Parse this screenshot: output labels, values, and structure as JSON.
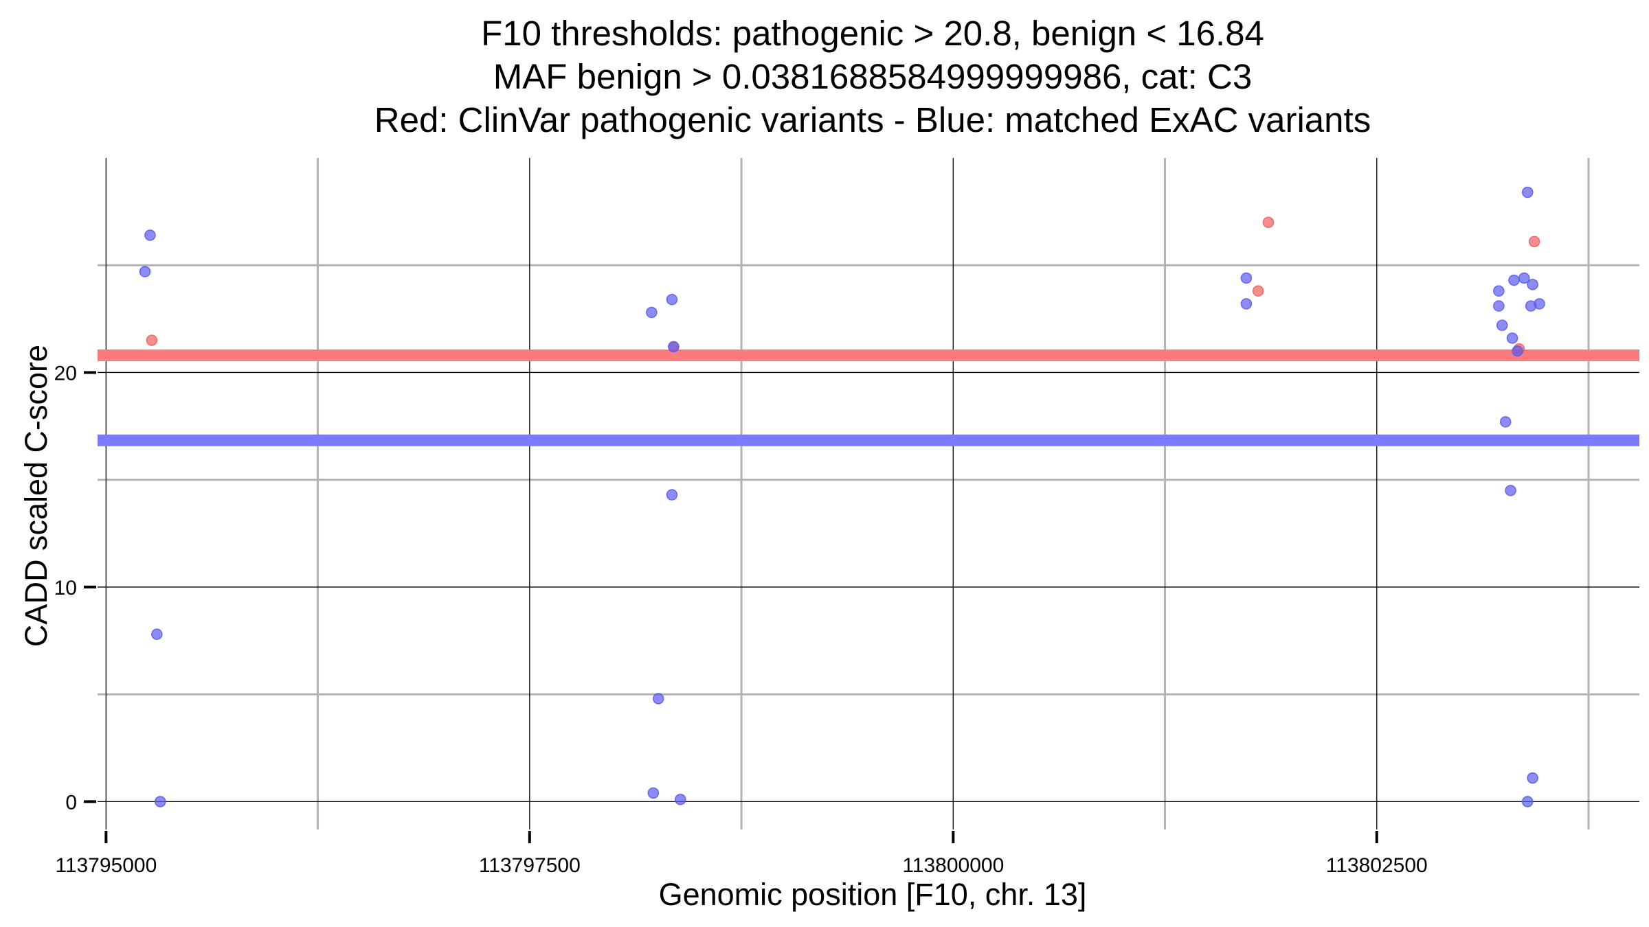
{
  "chart_data": {
    "type": "scatter",
    "title_lines": [
      "F10 thresholds: pathogenic > 20.8, benign < 16.84",
      "MAF benign > 0.0381688584999999986, cat: C3",
      "Red: ClinVar pathogenic variants - Blue: matched ExAC variants"
    ],
    "xlabel": "Genomic position [F10, chr. 13]",
    "ylabel": "CADD scaled C-score",
    "xlim": [
      113794950,
      113804050
    ],
    "ylim": [
      -1.3,
      30.0
    ],
    "x_ticks": [
      113795000,
      113797500,
      113800000,
      113802500
    ],
    "x_tick_labels": [
      "113795000",
      "113797500",
      "113800000",
      "113802500"
    ],
    "x_minor_gridlines": [
      113796250,
      113798750,
      113801250,
      113803750
    ],
    "y_ticks": [
      0,
      10,
      20
    ],
    "y_tick_labels": [
      "0",
      "10",
      "20"
    ],
    "y_minor_gridlines": [
      5,
      15,
      25
    ],
    "thresholds": [
      {
        "name": "pathogenic",
        "value": 20.8,
        "color": "#ff7a7a"
      },
      {
        "name": "benign",
        "value": 16.84,
        "color": "#7a7aff"
      }
    ],
    "series": [
      {
        "name": "ClinVar pathogenic variants",
        "color": "#f0605f",
        "points": [
          [
            113795270,
            21.5
          ],
          [
            113798350,
            21.2
          ],
          [
            113801800,
            23.8
          ],
          [
            113801860,
            27.0
          ],
          [
            113803340,
            21.1
          ],
          [
            113803430,
            26.1
          ]
        ]
      },
      {
        "name": "matched ExAC variants",
        "color": "#5b5bf2",
        "points": [
          [
            113795230,
            24.7
          ],
          [
            113795260,
            26.4
          ],
          [
            113795300,
            7.8
          ],
          [
            113795320,
            0.0
          ],
          [
            113798220,
            22.8
          ],
          [
            113798260,
            4.8
          ],
          [
            113798230,
            0.4
          ],
          [
            113798340,
            23.4
          ],
          [
            113798350,
            21.2
          ],
          [
            113798340,
            14.3
          ],
          [
            113798390,
            0.1
          ],
          [
            113801730,
            24.4
          ],
          [
            113801730,
            23.2
          ],
          [
            113803220,
            23.8
          ],
          [
            113803220,
            23.1
          ],
          [
            113803240,
            22.2
          ],
          [
            113803260,
            17.7
          ],
          [
            113803290,
            14.5
          ],
          [
            113803300,
            21.6
          ],
          [
            113803310,
            24.3
          ],
          [
            113803330,
            21.0
          ],
          [
            113803370,
            24.4
          ],
          [
            113803390,
            28.4
          ],
          [
            113803390,
            0.0
          ],
          [
            113803410,
            23.1
          ],
          [
            113803420,
            24.1
          ],
          [
            113803420,
            1.1
          ],
          [
            113803460,
            23.2
          ]
        ]
      }
    ]
  }
}
